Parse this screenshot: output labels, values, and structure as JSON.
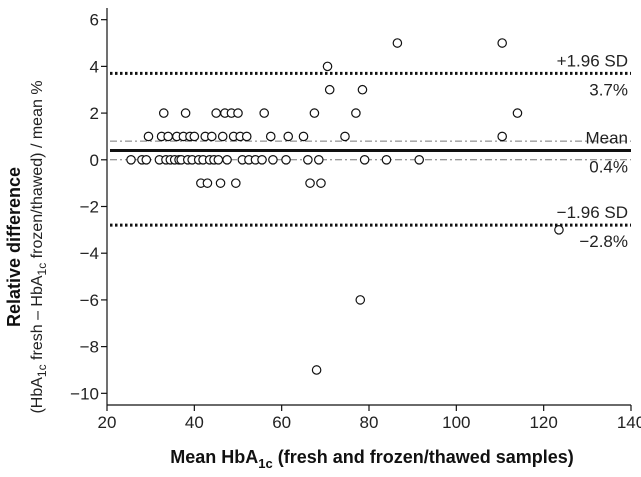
{
  "chart_data": {
    "type": "scatter",
    "title": "",
    "xlabel": {
      "main": "Mean HbA",
      "sub": "1c",
      "rest": " (fresh and frozen/thawed samples)"
    },
    "ylabel": {
      "line1": "Relative difference",
      "line2_parts": [
        "(HbA",
        "1c",
        " fresh – HbA",
        "1c",
        " frozen/thawed) / mean %"
      ]
    },
    "xlim": [
      20,
      140
    ],
    "ylim": [
      -10.5,
      6.5
    ],
    "x_ticks": [
      20,
      40,
      60,
      80,
      100,
      120,
      140
    ],
    "y_ticks": [
      -10,
      -8,
      -6,
      -4,
      -2,
      0,
      2,
      4,
      6
    ],
    "x_tick_labels": [
      "20",
      "40",
      "60",
      "80",
      "100",
      "120",
      "140"
    ],
    "y_tick_labels": [
      "−10",
      "−8",
      "−6",
      "−4",
      "−2",
      "0",
      "2",
      "4",
      "6"
    ],
    "grid": false,
    "reference_lines": [
      {
        "y": 3.7,
        "style": "dotted",
        "label_above": "+1.96 SD",
        "label_below": "3.7%"
      },
      {
        "y": 0.4,
        "style": "solid",
        "label_above": "Mean",
        "label_below": "0.4%"
      },
      {
        "y": 0.8,
        "style": "dashdot",
        "label_above": "",
        "label_below": ""
      },
      {
        "y": 0.0,
        "style": "dashdot",
        "label_above": "",
        "label_below": ""
      },
      {
        "y": -2.8,
        "style": "dotted",
        "label_above": "−1.96 SD",
        "label_below": "−2.8%"
      }
    ],
    "points": [
      {
        "x": 25.5,
        "y": 0
      },
      {
        "x": 28,
        "y": 0
      },
      {
        "x": 29,
        "y": 0
      },
      {
        "x": 29.5,
        "y": 1
      },
      {
        "x": 32,
        "y": 0
      },
      {
        "x": 32.5,
        "y": 1
      },
      {
        "x": 33,
        "y": 2
      },
      {
        "x": 33.5,
        "y": 0
      },
      {
        "x": 34,
        "y": 1
      },
      {
        "x": 34.5,
        "y": 0
      },
      {
        "x": 35.5,
        "y": 0
      },
      {
        "x": 36,
        "y": 1
      },
      {
        "x": 36.5,
        "y": 0
      },
      {
        "x": 37,
        "y": 0
      },
      {
        "x": 37.5,
        "y": 1
      },
      {
        "x": 38,
        "y": 2
      },
      {
        "x": 38.5,
        "y": 0
      },
      {
        "x": 39,
        "y": 1
      },
      {
        "x": 39.5,
        "y": 0
      },
      {
        "x": 40,
        "y": 1
      },
      {
        "x": 41,
        "y": 0
      },
      {
        "x": 41.5,
        "y": -1
      },
      {
        "x": 42,
        "y": 0
      },
      {
        "x": 42.5,
        "y": 1
      },
      {
        "x": 43,
        "y": -1
      },
      {
        "x": 43.5,
        "y": 0
      },
      {
        "x": 44,
        "y": 1
      },
      {
        "x": 44.5,
        "y": 0
      },
      {
        "x": 45,
        "y": 2
      },
      {
        "x": 45.5,
        "y": 0
      },
      {
        "x": 46,
        "y": -1
      },
      {
        "x": 46.5,
        "y": 1
      },
      {
        "x": 47,
        "y": 2
      },
      {
        "x": 47.5,
        "y": 0
      },
      {
        "x": 48.5,
        "y": 2
      },
      {
        "x": 49,
        "y": 1
      },
      {
        "x": 49.5,
        "y": -1
      },
      {
        "x": 50,
        "y": 2
      },
      {
        "x": 50.5,
        "y": 1
      },
      {
        "x": 51,
        "y": 0
      },
      {
        "x": 52,
        "y": 1
      },
      {
        "x": 52.5,
        "y": 0
      },
      {
        "x": 54,
        "y": 0
      },
      {
        "x": 55.5,
        "y": 0
      },
      {
        "x": 56,
        "y": 2
      },
      {
        "x": 57.5,
        "y": 1
      },
      {
        "x": 58,
        "y": 0
      },
      {
        "x": 61,
        "y": 0
      },
      {
        "x": 61.5,
        "y": 1
      },
      {
        "x": 65,
        "y": 1
      },
      {
        "x": 66,
        "y": 0
      },
      {
        "x": 66.5,
        "y": -1
      },
      {
        "x": 67.5,
        "y": 2
      },
      {
        "x": 68,
        "y": -9
      },
      {
        "x": 68.5,
        "y": 0
      },
      {
        "x": 69,
        "y": -1
      },
      {
        "x": 70.5,
        "y": 4
      },
      {
        "x": 71,
        "y": 3
      },
      {
        "x": 74.5,
        "y": 1
      },
      {
        "x": 77,
        "y": 2
      },
      {
        "x": 78,
        "y": -6
      },
      {
        "x": 78.5,
        "y": 3
      },
      {
        "x": 79,
        "y": 0
      },
      {
        "x": 84,
        "y": 0
      },
      {
        "x": 86.5,
        "y": 5
      },
      {
        "x": 91.5,
        "y": 0
      },
      {
        "x": 110.5,
        "y": 5
      },
      {
        "x": 110.5,
        "y": 1
      },
      {
        "x": 114,
        "y": 2
      },
      {
        "x": 123.5,
        "y": -3
      }
    ]
  }
}
